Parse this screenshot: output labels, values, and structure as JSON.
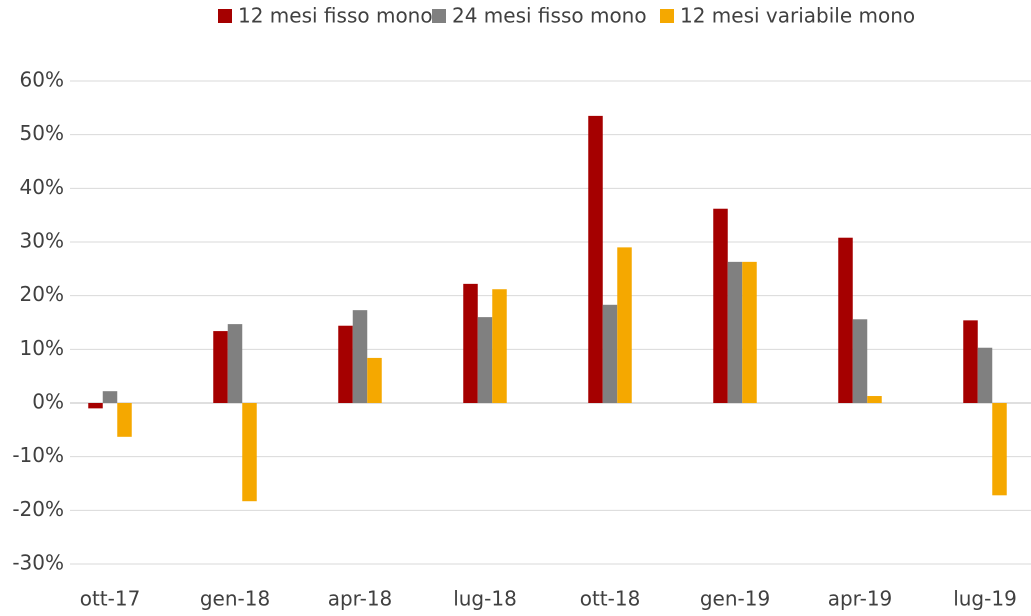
{
  "chart_data": {
    "type": "bar",
    "categories": [
      "ott-17",
      "gen-18",
      "apr-18",
      "lug-18",
      "ott-18",
      "gen-19",
      "apr-19",
      "lug-19"
    ],
    "series": [
      {
        "name": "12 mesi fisso mono",
        "color": "#a50000",
        "values": [
          -1,
          13.4,
          14.4,
          22.2,
          53.5,
          36.2,
          30.8,
          15.4
        ]
      },
      {
        "name": "24 mesi fisso mono",
        "color": "#808080",
        "values": [
          2.2,
          14.7,
          17.3,
          16,
          18.3,
          26.3,
          15.6,
          10.3
        ]
      },
      {
        "name": "12 mesi variabile mono",
        "color": "#f5a800",
        "values": [
          -6.3,
          -18.3,
          8.4,
          21.2,
          29,
          26.3,
          1.3,
          -17.2
        ]
      }
    ],
    "ylim": [
      -30,
      60
    ],
    "yticks": [
      {
        "value": -30,
        "label": "-30%"
      },
      {
        "value": -20,
        "label": "-20%"
      },
      {
        "value": -10,
        "label": "-10%"
      },
      {
        "value": 0,
        "label": "0%"
      },
      {
        "value": 10,
        "label": "10%"
      },
      {
        "value": 20,
        "label": "20%"
      },
      {
        "value": 30,
        "label": "30%"
      },
      {
        "value": 40,
        "label": "40%"
      },
      {
        "value": 50,
        "label": "50%"
      },
      {
        "value": 60,
        "label": "60%"
      }
    ],
    "grid": true,
    "legend": "top"
  }
}
